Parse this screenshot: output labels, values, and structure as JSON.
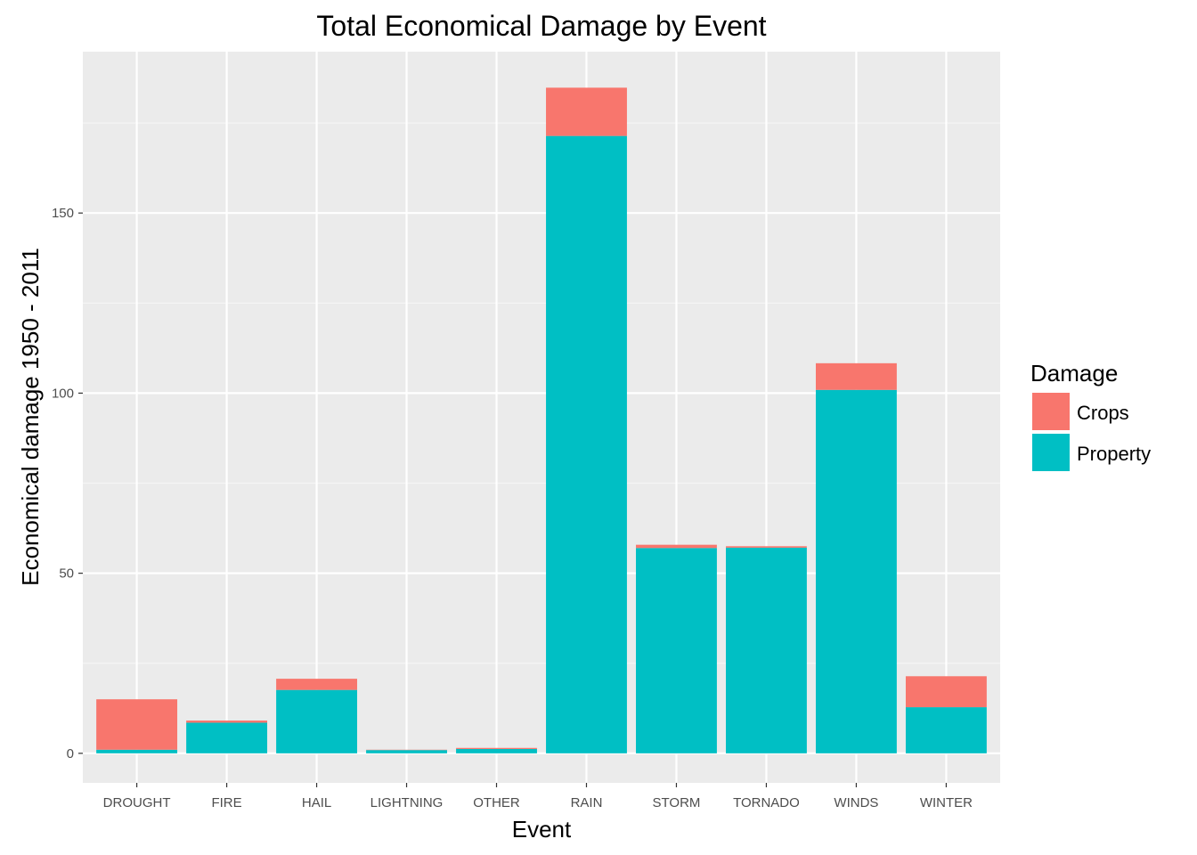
{
  "chart_data": {
    "type": "bar",
    "stacked": true,
    "title": "Total Economical Damage by Event",
    "xlabel": "Event",
    "ylabel": "Economical damage 1950 - 2011",
    "categories": [
      "DROUGHT",
      "FIRE",
      "HAIL",
      "LIGHTNING",
      "OTHER",
      "RAIN",
      "STORM",
      "TORNADO",
      "WINDS",
      "WINTER"
    ],
    "series": [
      {
        "name": "Property",
        "color": "#00BFC4",
        "values": [
          1.0,
          8.5,
          17.6,
          0.9,
          1.2,
          171.4,
          57.0,
          57.1,
          100.9,
          12.8
        ]
      },
      {
        "name": "Crops",
        "color": "#F8766D",
        "values": [
          14.0,
          0.6,
          3.1,
          0.1,
          0.3,
          13.4,
          0.9,
          0.4,
          7.4,
          8.6
        ]
      }
    ],
    "ylim": [
      -8.2,
      194.8
    ],
    "yticks": [
      0,
      50,
      100,
      150
    ],
    "grid": true,
    "legend": {
      "title": "Damage",
      "position": "right",
      "order": [
        "Crops",
        "Property"
      ]
    }
  }
}
